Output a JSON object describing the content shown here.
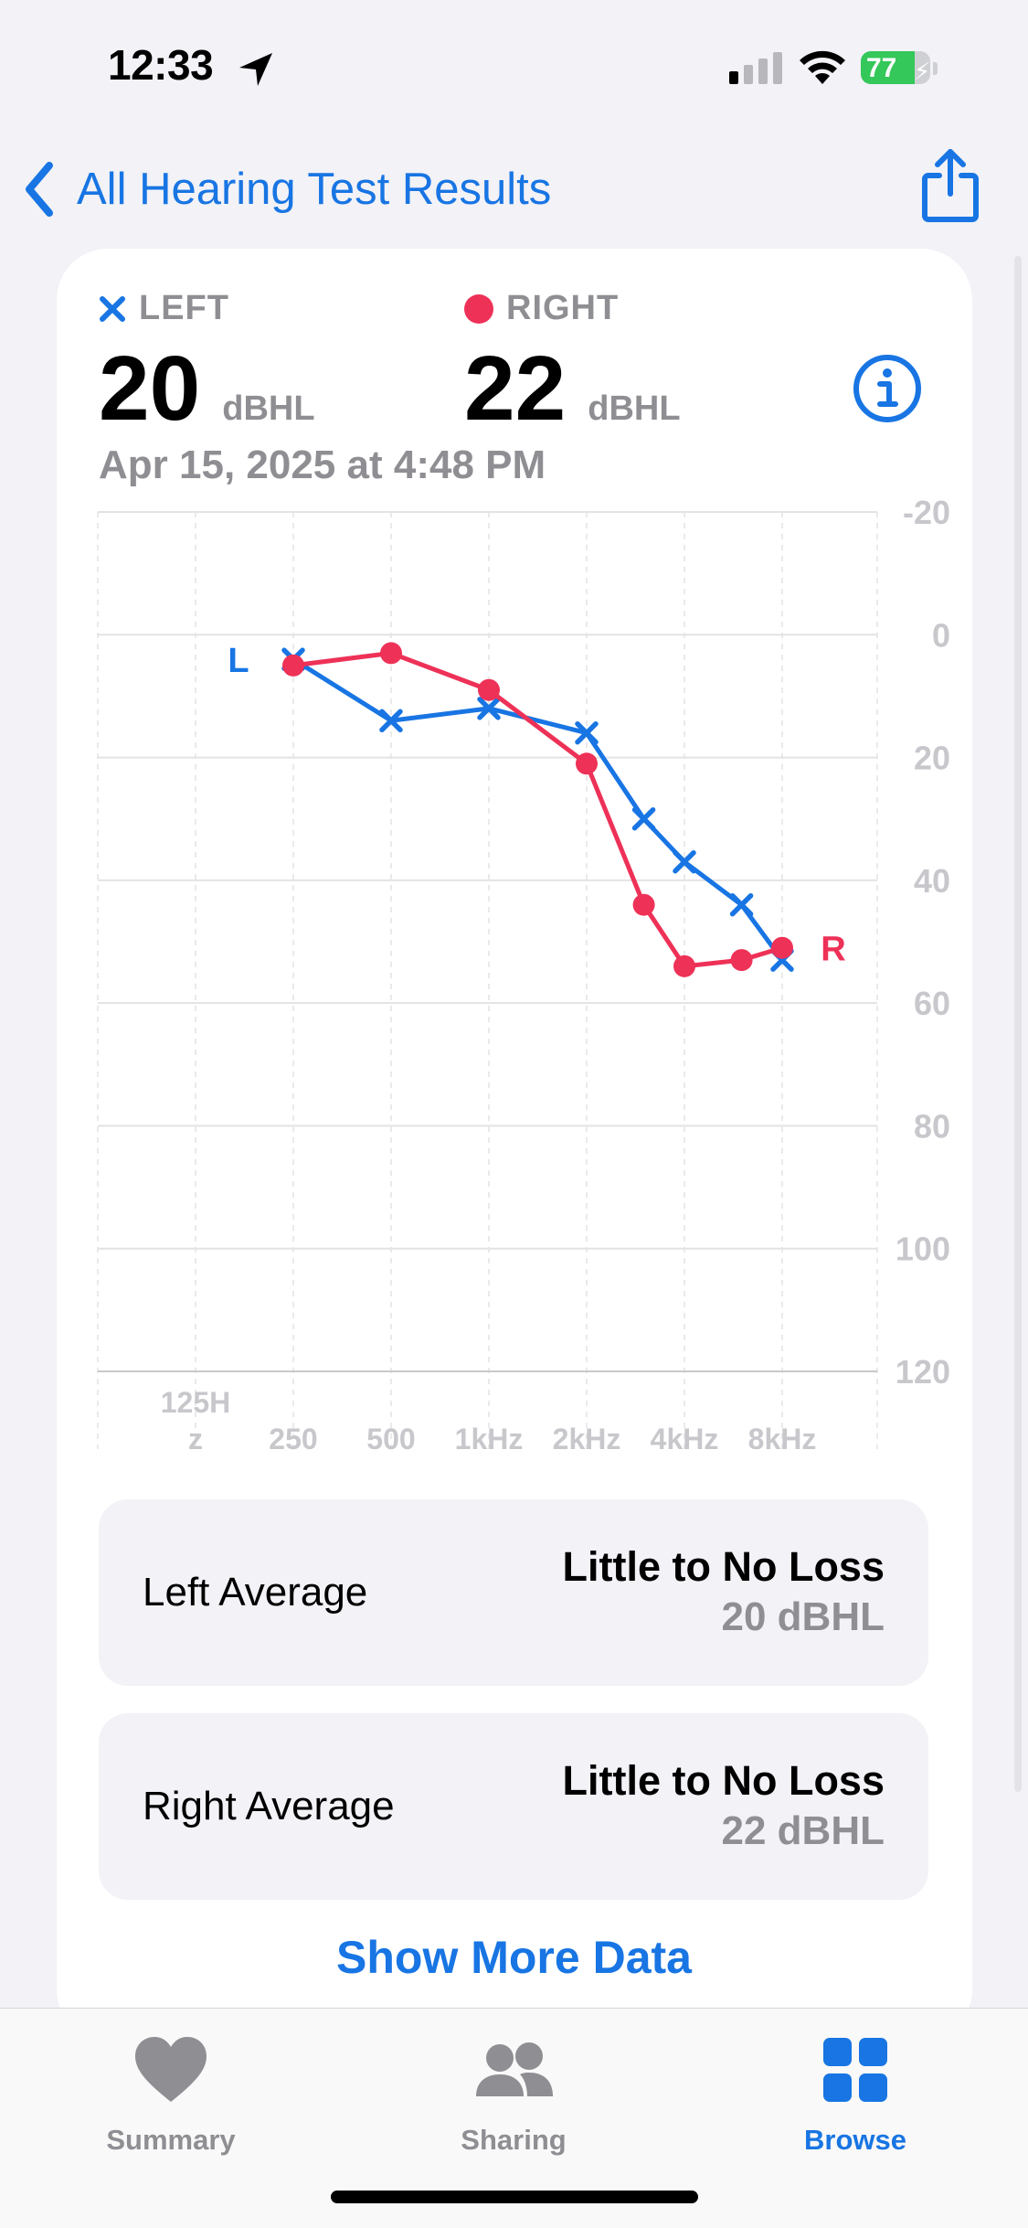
{
  "status_bar": {
    "time": "12:33",
    "battery": "77",
    "battery_level": 0.77
  },
  "nav": {
    "back_label": "All Hearing Test Results"
  },
  "summary": {
    "left_label": "LEFT",
    "right_label": "RIGHT",
    "left_value": "20",
    "right_value": "22",
    "unit": "dBHL",
    "date": "Apr 15, 2025 at 4:48 PM"
  },
  "chart_data": {
    "type": "line",
    "x": [
      "125Hz",
      "250",
      "500",
      "1kHz",
      "2kHz",
      "4kHz",
      "8kHz"
    ],
    "y_ticks": [
      "-20",
      "0",
      "20",
      "40",
      "60",
      "80",
      "100",
      "120"
    ],
    "ylim": [
      -20,
      120
    ],
    "y_inverted": true,
    "grid": true,
    "series": [
      {
        "name": "L",
        "color": "#1875E3",
        "marker": "x",
        "points": [
          [
            250,
            4
          ],
          [
            500,
            14
          ],
          [
            1000,
            12
          ],
          [
            2000,
            16
          ],
          [
            3000,
            30
          ],
          [
            4000,
            37
          ],
          [
            6000,
            44
          ],
          [
            8000,
            53
          ]
        ]
      },
      {
        "name": "R",
        "color": "#EE3157",
        "marker": "o",
        "points": [
          [
            250,
            5
          ],
          [
            500,
            3
          ],
          [
            1000,
            9
          ],
          [
            2000,
            21
          ],
          [
            3000,
            44
          ],
          [
            4000,
            54
          ],
          [
            6000,
            53
          ],
          [
            8000,
            51
          ]
        ]
      }
    ]
  },
  "averages": [
    {
      "title": "Left Average",
      "classification": "Little to No Loss",
      "value": "20 dBHL"
    },
    {
      "title": "Right Average",
      "classification": "Little to No Loss",
      "value": "22 dBHL"
    }
  ],
  "show_more_label": "Show More Data",
  "tabs": [
    {
      "label": "Summary",
      "icon": "heart-icon"
    },
    {
      "label": "Sharing",
      "icon": "people-icon"
    },
    {
      "label": "Browse",
      "icon": "grid-icon"
    }
  ],
  "colors": {
    "accent": "#1875E3",
    "right": "#EE3157",
    "secondary_text": "#8E8E93"
  }
}
